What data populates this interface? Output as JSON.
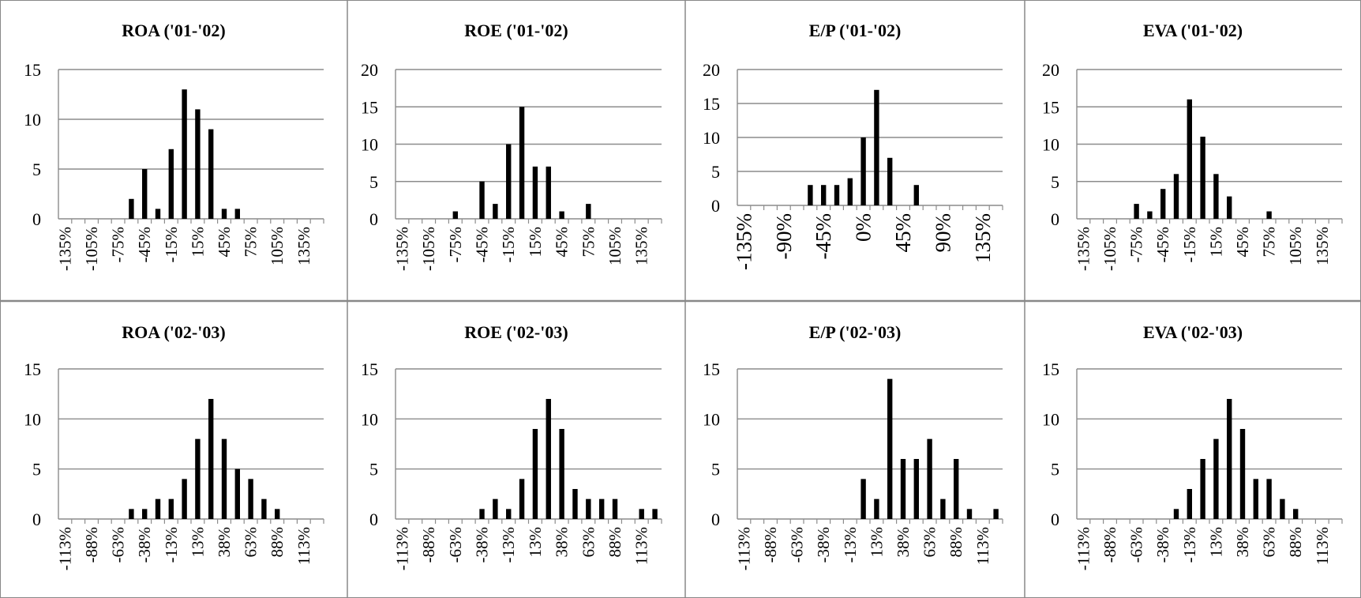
{
  "chart_data": [
    {
      "type": "bar",
      "title": "ROA ('01-'02)",
      "x": [
        "-135%",
        "-120%",
        "-105%",
        "-90%",
        "-75%",
        "-60%",
        "-45%",
        "-30%",
        "-15%",
        "0%",
        "15%",
        "30%",
        "45%",
        "60%",
        "75%",
        "90%",
        "105%",
        "120%",
        "135%",
        "150%"
      ],
      "xtick_labels": [
        "-135%",
        "-105%",
        "-75%",
        "-45%",
        "-15%",
        "15%",
        "45%",
        "75%",
        "105%",
        "135%"
      ],
      "values": [
        0,
        0,
        0,
        0,
        0,
        2,
        5,
        1,
        7,
        13,
        11,
        9,
        1,
        1,
        0,
        0,
        0,
        0,
        0,
        0
      ],
      "ylim": [
        0,
        15
      ],
      "yticks": [
        "0",
        "5",
        "10",
        "15"
      ],
      "grid": true
    },
    {
      "type": "bar",
      "title": "ROE ('01-'02)",
      "x": [
        "-135%",
        "-120%",
        "-105%",
        "-90%",
        "-75%",
        "-60%",
        "-45%",
        "-30%",
        "-15%",
        "0%",
        "15%",
        "30%",
        "45%",
        "60%",
        "75%",
        "90%",
        "105%",
        "120%",
        "135%",
        "150%"
      ],
      "xtick_labels": [
        "-135%",
        "-105%",
        "-75%",
        "-45%",
        "-15%",
        "15%",
        "45%",
        "75%",
        "105%",
        "135%"
      ],
      "values": [
        0,
        0,
        0,
        0,
        1,
        0,
        5,
        2,
        10,
        15,
        7,
        7,
        1,
        0,
        2,
        0,
        0,
        0,
        0,
        0
      ],
      "ylim": [
        0,
        20
      ],
      "yticks": [
        "0",
        "5",
        "10",
        "15",
        "20"
      ],
      "grid": true
    },
    {
      "type": "bar",
      "title": "E/P ('01-'02)",
      "x": [
        "-135%",
        "-120%",
        "-105%",
        "-90%",
        "-75%",
        "-60%",
        "-45%",
        "-30%",
        "-15%",
        "0%",
        "15%",
        "30%",
        "45%",
        "60%",
        "75%",
        "90%",
        "105%",
        "120%",
        "135%",
        "150%"
      ],
      "xtick_labels": [
        "-135%",
        "-90%",
        "-45%",
        "0%",
        "45%",
        "90%",
        "135%"
      ],
      "values": [
        0,
        0,
        0,
        0,
        0,
        3,
        3,
        3,
        4,
        10,
        17,
        7,
        0,
        3,
        0,
        0,
        0,
        0,
        0,
        0
      ],
      "ylim": [
        0,
        20
      ],
      "yticks": [
        "0",
        "5",
        "10",
        "15",
        "20"
      ],
      "grid": true
    },
    {
      "type": "bar",
      "title": "EVA ('01-'02)",
      "x": [
        "-135%",
        "-120%",
        "-105%",
        "-90%",
        "-75%",
        "-60%",
        "-45%",
        "-30%",
        "-15%",
        "0%",
        "15%",
        "30%",
        "45%",
        "60%",
        "75%",
        "90%",
        "105%",
        "120%",
        "135%",
        "150%"
      ],
      "xtick_labels": [
        "-135%",
        "-105%",
        "-75%",
        "-45%",
        "-15%",
        "15%",
        "45%",
        "75%",
        "105%",
        "135%"
      ],
      "values": [
        0,
        0,
        0,
        0,
        2,
        1,
        4,
        6,
        16,
        11,
        6,
        3,
        0,
        0,
        1,
        0,
        0,
        0,
        0,
        0
      ],
      "ylim": [
        0,
        20
      ],
      "yticks": [
        "0",
        "5",
        "10",
        "15",
        "20"
      ],
      "grid": true
    },
    {
      "type": "bar",
      "title": "ROA ('02-'03)",
      "x": [
        "-113%",
        "-100%",
        "-88%",
        "-75%",
        "-63%",
        "-50%",
        "-38%",
        "-25%",
        "-13%",
        "0%",
        "13%",
        "25%",
        "38%",
        "50%",
        "63%",
        "75%",
        "88%",
        "100%",
        "113%",
        "125%"
      ],
      "xtick_labels": [
        "-113%",
        "-88%",
        "-63%",
        "-38%",
        "-13%",
        "13%",
        "38%",
        "63%",
        "88%",
        "113%"
      ],
      "values": [
        0,
        0,
        0,
        0,
        0,
        1,
        1,
        2,
        2,
        4,
        8,
        12,
        8,
        5,
        4,
        2,
        1,
        0,
        0,
        0
      ],
      "ylim": [
        0,
        15
      ],
      "yticks": [
        "0",
        "5",
        "10",
        "15"
      ],
      "grid": true
    },
    {
      "type": "bar",
      "title": "ROE ('02-'03)",
      "x": [
        "-113%",
        "-100%",
        "-88%",
        "-75%",
        "-63%",
        "-50%",
        "-38%",
        "-25%",
        "-13%",
        "0%",
        "13%",
        "25%",
        "38%",
        "50%",
        "63%",
        "75%",
        "88%",
        "100%",
        "113%",
        "125%"
      ],
      "xtick_labels": [
        "-113%",
        "-88%",
        "-63%",
        "-38%",
        "-13%",
        "13%",
        "38%",
        "63%",
        "88%",
        "113%"
      ],
      "values": [
        0,
        0,
        0,
        0,
        0,
        0,
        1,
        2,
        1,
        4,
        9,
        12,
        9,
        3,
        2,
        2,
        2,
        0,
        1,
        1
      ],
      "ylim": [
        0,
        15
      ],
      "yticks": [
        "0",
        "5",
        "10",
        "15"
      ],
      "grid": true
    },
    {
      "type": "bar",
      "title": "E/P ('02-'03)",
      "x": [
        "-113%",
        "-100%",
        "-88%",
        "-75%",
        "-63%",
        "-50%",
        "-38%",
        "-25%",
        "-13%",
        "0%",
        "13%",
        "25%",
        "38%",
        "50%",
        "63%",
        "75%",
        "88%",
        "100%",
        "113%",
        "125%"
      ],
      "xtick_labels": [
        "-113%",
        "-88%",
        "-63%",
        "-38%",
        "-13%",
        "13%",
        "38%",
        "63%",
        "88%",
        "113%"
      ],
      "values": [
        0,
        0,
        0,
        0,
        0,
        0,
        0,
        0,
        0,
        4,
        2,
        14,
        6,
        6,
        8,
        2,
        6,
        1,
        0,
        1
      ],
      "ylim": [
        0,
        15
      ],
      "yticks": [
        "0",
        "5",
        "10",
        "15"
      ],
      "grid": true
    },
    {
      "type": "bar",
      "title": "EVA ('02-'03)",
      "x": [
        "-113%",
        "-100%",
        "-88%",
        "-75%",
        "-63%",
        "-50%",
        "-38%",
        "-25%",
        "-13%",
        "0%",
        "13%",
        "25%",
        "38%",
        "50%",
        "63%",
        "75%",
        "88%",
        "100%",
        "113%",
        "125%"
      ],
      "xtick_labels": [
        "-113%",
        "-88%",
        "-63%",
        "-38%",
        "-13%",
        "13%",
        "38%",
        "63%",
        "88%",
        "113%"
      ],
      "values": [
        0,
        0,
        0,
        0,
        0,
        0,
        0,
        1,
        3,
        6,
        8,
        12,
        9,
        4,
        4,
        2,
        1,
        0,
        0,
        0
      ],
      "ylim": [
        0,
        15
      ],
      "yticks": [
        "0",
        "5",
        "10",
        "15"
      ],
      "grid": true
    }
  ]
}
